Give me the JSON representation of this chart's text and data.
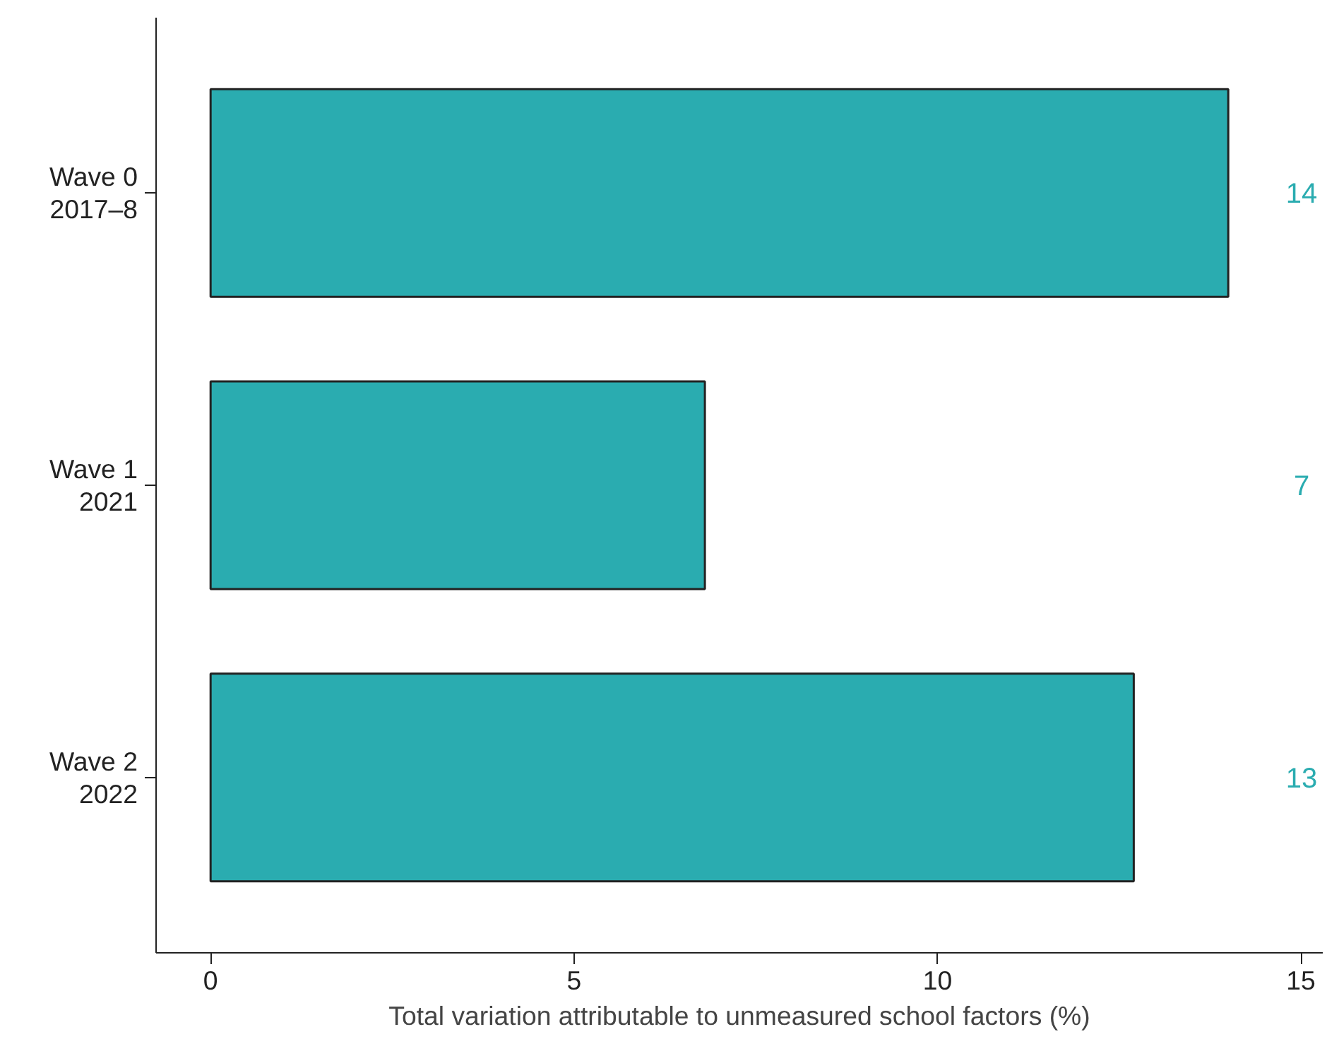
{
  "chart_data": {
    "type": "bar",
    "orientation": "horizontal",
    "xlabel": "Total variation attributable to unmeasured school factors (%)",
    "categories": [
      "Wave 0\n2017–8",
      "Wave 1\n2021",
      "Wave 2\n2022"
    ],
    "values": [
      14.0,
      6.8,
      12.7
    ],
    "value_labels": [
      "14",
      "7",
      "13"
    ],
    "color": "#2aacb0",
    "xlim": [
      -0.75,
      15.3
    ],
    "xticks": [
      0,
      5,
      10,
      15
    ],
    "grid": false
  }
}
